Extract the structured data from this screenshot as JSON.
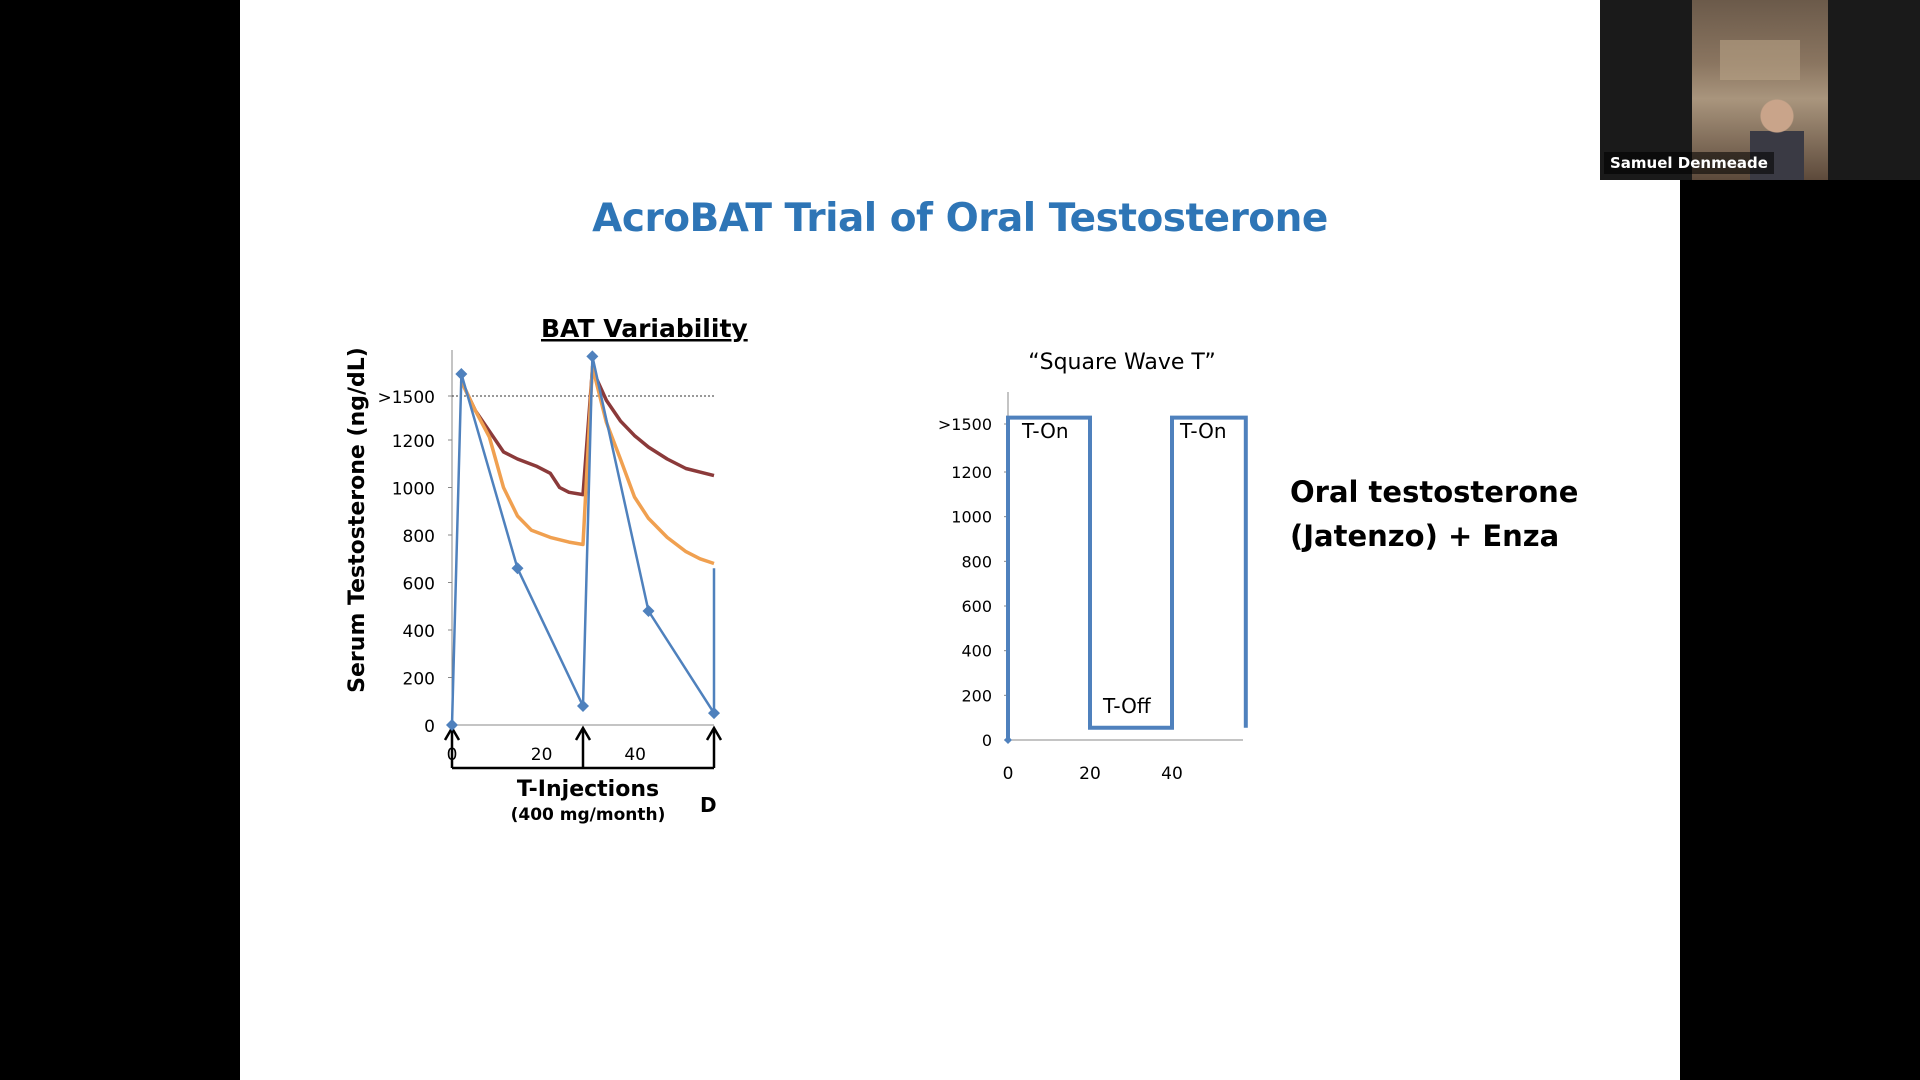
{
  "slide": {
    "title": "AcroBAT Trial of Oral Testosterone",
    "side_text_line1": "Oral testosterone",
    "side_text_line2": "(Jatenzo) + Enza"
  },
  "participant": {
    "name": "Samuel Denmeade"
  },
  "chart_data": [
    {
      "type": "line",
      "title": "BAT Variability",
      "ylabel": "Serum Testosterone (ng/dL)",
      "xlabel": "T-Injections",
      "xlabel_sub": "(400 mg/month)",
      "x_unit_label": "D",
      "y_ticks": [
        "0",
        "200",
        "400",
        "600",
        "800",
        "1000",
        "1200",
        ">1500"
      ],
      "x_ticks": [
        "0",
        "20",
        "40"
      ],
      "threshold_label": ">1500",
      "injection_days": [
        0,
        28,
        56
      ],
      "series": [
        {
          "color": "#4F81BD",
          "points": [
            [
              0,
              0
            ],
            [
              2,
              1650
            ],
            [
              14,
              660
            ],
            [
              28,
              80
            ],
            [
              30,
              1770
            ],
            [
              42,
              480
            ],
            [
              56,
              50
            ],
            [
              56,
              660
            ]
          ]
        },
        {
          "color": "#F0A050",
          "points": [
            [
              2,
              1600
            ],
            [
              5,
              1400
            ],
            [
              8,
              1220
            ],
            [
              11,
              1000
            ],
            [
              14,
              880
            ],
            [
              17,
              820
            ],
            [
              21,
              790
            ],
            [
              25,
              770
            ],
            [
              28,
              760
            ],
            [
              30,
              1700
            ],
            [
              33,
              1320
            ],
            [
              36,
              1120
            ],
            [
              39,
              960
            ],
            [
              42,
              870
            ],
            [
              46,
              790
            ],
            [
              50,
              730
            ],
            [
              53,
              700
            ],
            [
              56,
              680
            ]
          ]
        },
        {
          "color": "#8B3A3A",
          "points": [
            [
              2,
              1600
            ],
            [
              5,
              1400
            ],
            [
              8,
              1260
            ],
            [
              11,
              1150
            ],
            [
              14,
              1120
            ],
            [
              18,
              1090
            ],
            [
              21,
              1060
            ],
            [
              23,
              1000
            ],
            [
              25,
              980
            ],
            [
              28,
              970
            ],
            [
              30,
              1680
            ],
            [
              33,
              1470
            ],
            [
              36,
              1330
            ],
            [
              39,
              1230
            ],
            [
              42,
              1170
            ],
            [
              46,
              1120
            ],
            [
              50,
              1080
            ],
            [
              53,
              1065
            ],
            [
              56,
              1050
            ]
          ]
        }
      ]
    },
    {
      "type": "line",
      "title": "“Square Wave T”",
      "y_ticks": [
        "0",
        "200",
        "400",
        "600",
        "800",
        "1000",
        "1200",
        ">1500"
      ],
      "x_ticks": [
        "0",
        "20",
        "40"
      ],
      "labels": {
        "on1": "T-On",
        "off": "T-Off",
        "on2": "T-On"
      },
      "series": [
        {
          "color": "#4F81BD",
          "points": [
            [
              0,
              0
            ],
            [
              0,
              1540
            ],
            [
              20,
              1540
            ],
            [
              20,
              55
            ],
            [
              40,
              55
            ],
            [
              40,
              1540
            ],
            [
              58,
              1540
            ],
            [
              58,
              55
            ]
          ]
        }
      ]
    }
  ]
}
